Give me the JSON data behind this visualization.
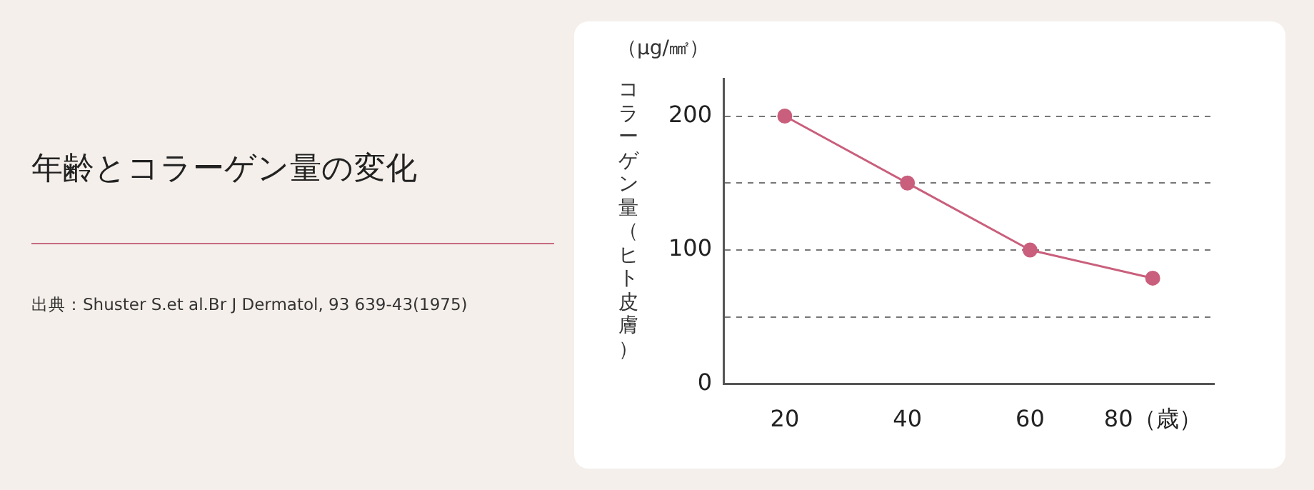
{
  "chart_data": {
    "type": "line",
    "title": "年齢とコラーゲン量の変化",
    "ylabel": "コラーゲン量（ヒト皮膚）",
    "annotations": [
      "（μg/㎟）",
      "出典：Shuster S.et al.Br J Dermatol, 93 639-43(1975)"
    ],
    "categories": [
      "20",
      "40",
      "60",
      "80（歳）"
    ],
    "series": [
      {
        "color": "#c95f7c",
        "values": [
          200,
          150,
          100,
          79
        ]
      }
    ],
    "ylim": [
      0,
      228
    ],
    "yticks": [
      0,
      {
        "value": 50,
        "label": null
      },
      100,
      {
        "value": 150,
        "label": null
      },
      200
    ],
    "grid": "y",
    "legend": false,
    "marker": "circle",
    "line_style": "solid"
  }
}
